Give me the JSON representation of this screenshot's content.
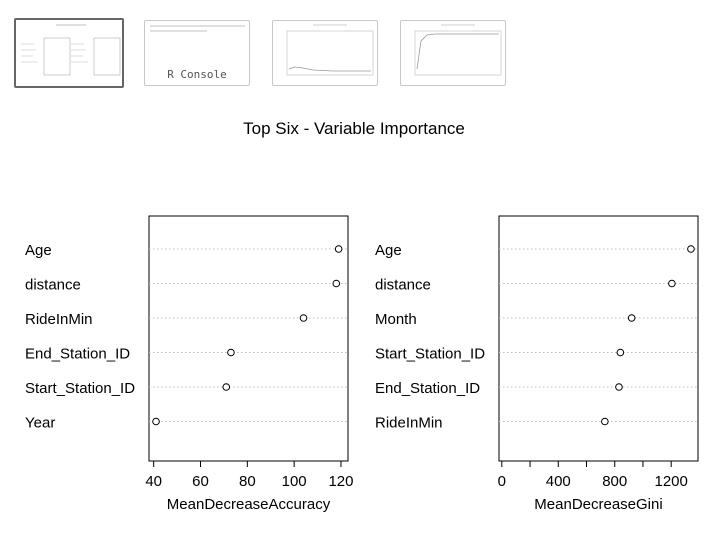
{
  "thumbnails": [
    {
      "name": "variable-importance-plot",
      "active": true
    },
    {
      "name": "r-console",
      "label": "R Console",
      "active": false
    },
    {
      "name": "partial-dependence-plot-1",
      "active": false
    },
    {
      "name": "partial-dependence-plot-2",
      "active": false
    }
  ],
  "chart_data": {
    "type": "scatter",
    "title": "Top Six - Variable Importance",
    "panels": [
      {
        "xlabel": "MeanDecreaseAccuracy",
        "xlim": [
          38,
          123
        ],
        "xticks": [
          40,
          60,
          80,
          100,
          120
        ],
        "categories": [
          "Age",
          "distance",
          "RideInMin",
          "End_Station_ID",
          "Start_Station_ID",
          "Year"
        ],
        "values": [
          119,
          118,
          104,
          73,
          71,
          41
        ]
      },
      {
        "xlabel": "MeanDecreaseGini",
        "xlim": [
          -20,
          1390
        ],
        "xticks": [
          0,
          400,
          800,
          1200
        ],
        "minor_ticks": [
          200,
          600,
          1000
        ],
        "categories": [
          "Age",
          "distance",
          "Month",
          "Start_Station_ID",
          "End_Station_ID",
          "RideInMin"
        ],
        "values": [
          1340,
          1205,
          920,
          840,
          830,
          730
        ]
      }
    ]
  }
}
